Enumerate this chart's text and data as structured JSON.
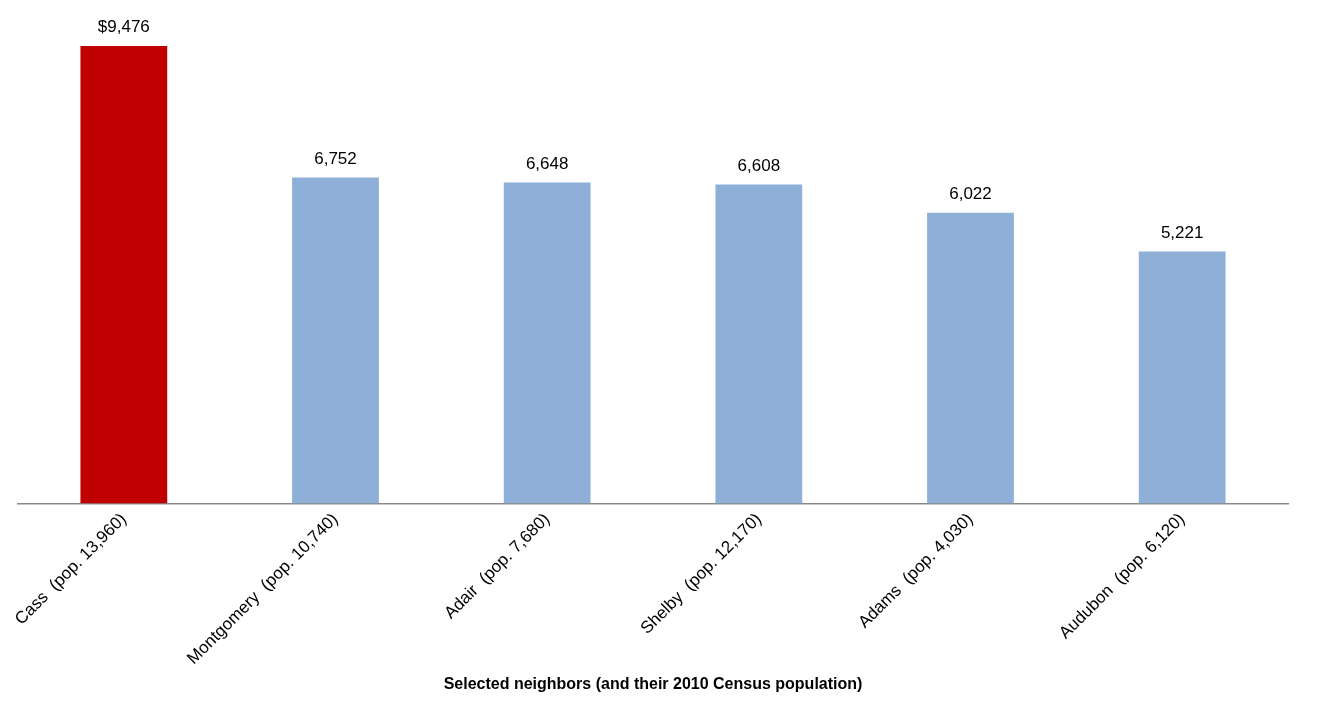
{
  "chart_data": {
    "type": "bar",
    "xlabel": "Selected neighbors (and their 2010 Census population)",
    "categories": [
      "Cass  (pop. 13,960)",
      "Montgomery  (pop. 10,740)",
      "Adair  (pop. 7,680)",
      "Shelby  (pop. 12,170)",
      "Adams  (pop. 4,030)",
      "Audubon  (pop. 6,120)"
    ],
    "values": [
      9476,
      6752,
      6648,
      6608,
      6022,
      5221
    ],
    "colors": [
      "#c00000",
      "#8eb0d8",
      "#8eb0d8",
      "#8eb0d8",
      "#8eb0d8",
      "#8eb0d8"
    ],
    "value_labels": [
      "$9,476",
      "6,752",
      "6,648",
      "6,608",
      "6,022",
      "5,221"
    ],
    "grid": false,
    "legend": false
  }
}
